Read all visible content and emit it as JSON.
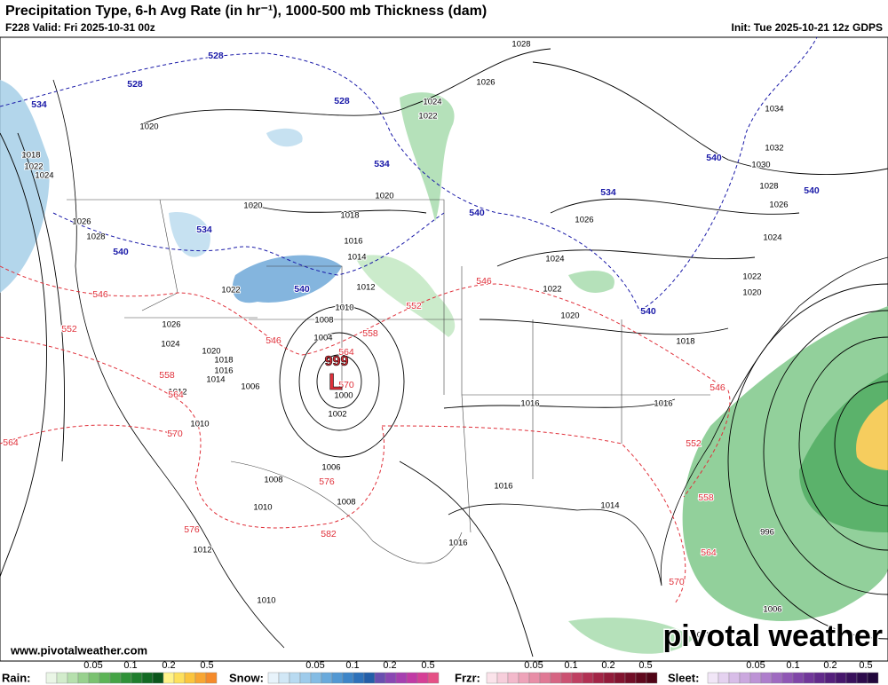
{
  "header": {
    "title": "Precipitation Type, 6-h Avg Rate (in hr⁻¹), 1000-500 mb Thickness (dam)",
    "valid": "F228 Valid: Fri 2025-10-31 00z",
    "init": "Init: Tue 2025-10-21 12z GDPS"
  },
  "map": {
    "isobar_labels": [
      "1028",
      "1026",
      "1024",
      "1022",
      "1020",
      "1034",
      "1032",
      "1030",
      "1028",
      "1026",
      "1024",
      "1022",
      "1020",
      "1018",
      "1022",
      "1024",
      "1026",
      "1028",
      "1020",
      "1020",
      "1018",
      "1016",
      "1014",
      "1012",
      "1026",
      "1024",
      "1022",
      "1020",
      "1018",
      "1010",
      "1008",
      "1004",
      "1022",
      "1026",
      "1024",
      "1020",
      "1018",
      "1016",
      "1014",
      "1012",
      "1010",
      "1006",
      "1000",
      "1002",
      "1006",
      "1008",
      "1008",
      "1016",
      "1016",
      "1016",
      "1014",
      "1016",
      "1010",
      "1012",
      "1010",
      "996",
      "1006",
      "1008"
    ],
    "thickness_labels_blue": [
      "528",
      "528",
      "534",
      "528",
      "534",
      "534",
      "540",
      "540",
      "540",
      "534",
      "540",
      "540",
      "540"
    ],
    "thickness_labels_red": [
      "546",
      "552",
      "546",
      "552",
      "546",
      "558",
      "564",
      "558",
      "564",
      "570",
      "570",
      "564",
      "552",
      "546",
      "558",
      "576",
      "582",
      "576",
      "564",
      "570"
    ],
    "low_pressure": "999",
    "low_symbol": "L"
  },
  "footer": {
    "url": "www.pivotalweather.com",
    "brand": "pivotal weather",
    "legends": [
      {
        "label": "Rain:",
        "ticks": [
          "0.05",
          "0.1",
          "0.2",
          "0.5"
        ]
      },
      {
        "label": "Snow:",
        "ticks": [
          "0.05",
          "0.1",
          "0.2",
          "0.5"
        ]
      },
      {
        "label": "Frzr:",
        "ticks": [
          "0.05",
          "0.1",
          "0.2",
          "0.5"
        ]
      },
      {
        "label": "Sleet:",
        "ticks": [
          "0.05",
          "0.1",
          "0.2",
          "0.5"
        ]
      }
    ]
  }
}
